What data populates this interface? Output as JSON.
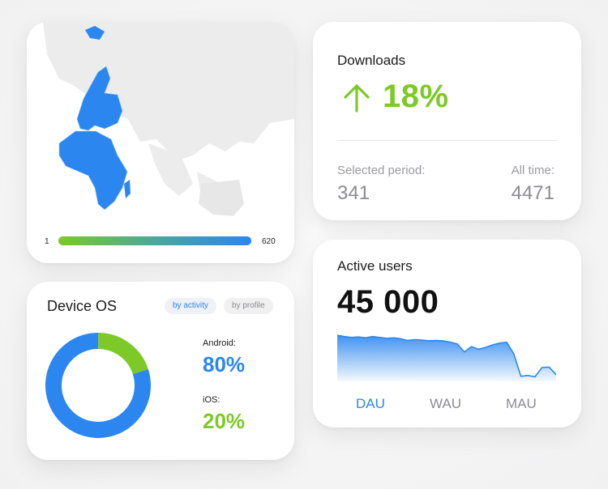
{
  "map": {
    "legend_min": "1",
    "legend_max": "620",
    "colors": {
      "highlight": "#2b86f0",
      "land": "#ececec"
    }
  },
  "downloads": {
    "title": "Downloads",
    "change": "18%",
    "trend_icon": "arrow-up-icon",
    "selected_label": "Selected period:",
    "selected_value": "341",
    "alltime_label": "All time:",
    "alltime_value": "4471"
  },
  "device_os": {
    "title": "Device  OS",
    "filters": [
      "by activity",
      "by profile"
    ],
    "active_filter": "by activity",
    "android_label": "Android:",
    "android_value": "80%",
    "ios_label": "iOS:",
    "ios_value": "20%",
    "donut": [
      {
        "name": "Android",
        "share": 0.8,
        "color": "#2b86f0"
      },
      {
        "name": "iOS",
        "share": 0.2,
        "color": "#7cc928"
      }
    ]
  },
  "active_users": {
    "title": "Active users",
    "value": "45 000",
    "tabs": [
      "DAU",
      "WAU",
      "MAU"
    ],
    "active_tab": "DAU",
    "series": [
      0.98,
      0.95,
      0.93,
      0.94,
      0.92,
      0.95,
      0.93,
      0.91,
      0.92,
      0.9,
      0.86,
      0.88,
      0.87,
      0.85,
      0.86,
      0.85,
      0.82,
      0.78,
      0.6,
      0.72,
      0.66,
      0.7,
      0.76,
      0.8,
      0.82,
      0.56,
      0.04,
      0.06,
      0.03,
      0.24,
      0.25,
      0.08
    ],
    "accent": "#2b86f0"
  }
}
